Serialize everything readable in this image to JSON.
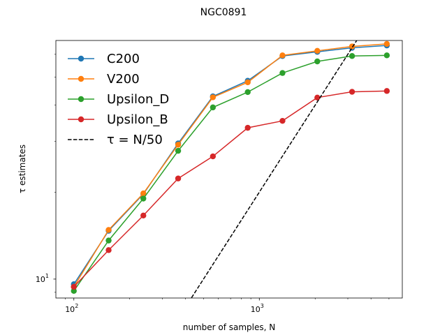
{
  "chart_data": {
    "type": "line",
    "title": "NGC0891",
    "xlabel": "number of samples, N",
    "ylabel": "τ estimates",
    "xscale": "log",
    "yscale": "log",
    "xlim": [
      80,
      5900
    ],
    "ylim": [
      8.6,
      67
    ],
    "grid": false,
    "legend_position": "upper-left",
    "x_ticks": [
      {
        "value": 100,
        "label": "10^2"
      },
      {
        "value": 1000,
        "label": "10^3"
      }
    ],
    "y_ticks": [
      {
        "value": 10,
        "label": "10^1"
      }
    ],
    "x": [
      100,
      154,
      237,
      365,
      562,
      866,
      1333,
      2054,
      3162,
      4870
    ],
    "series": [
      {
        "name": "C200",
        "color": "#1f77b4",
        "marker": "circle",
        "values": [
          9.6,
          14.7,
          19.7,
          29.5,
          42.9,
          48.6,
          59.2,
          61.2,
          63.2,
          64.4
        ]
      },
      {
        "name": "V200",
        "color": "#ff7f0e",
        "marker": "circle",
        "values": [
          9.4,
          14.8,
          19.8,
          29.2,
          42.6,
          48.0,
          59.5,
          61.7,
          63.9,
          65.2
        ]
      },
      {
        "name": "Upsilon_D",
        "color": "#2ca02c",
        "marker": "circle",
        "values": [
          9.1,
          13.6,
          19.0,
          27.8,
          39.3,
          44.4,
          51.7,
          56.7,
          59.2,
          59.5
        ]
      },
      {
        "name": "Upsilon_B",
        "color": "#d62728",
        "marker": "circle",
        "values": [
          9.4,
          12.6,
          16.6,
          22.3,
          26.6,
          33.4,
          35.3,
          42.5,
          44.5,
          44.8
        ]
      },
      {
        "name": "τ = N/50",
        "color": "#000000",
        "dash": true,
        "x": [
          400,
          5400
        ],
        "values": [
          8.0,
          108.0
        ]
      }
    ]
  }
}
